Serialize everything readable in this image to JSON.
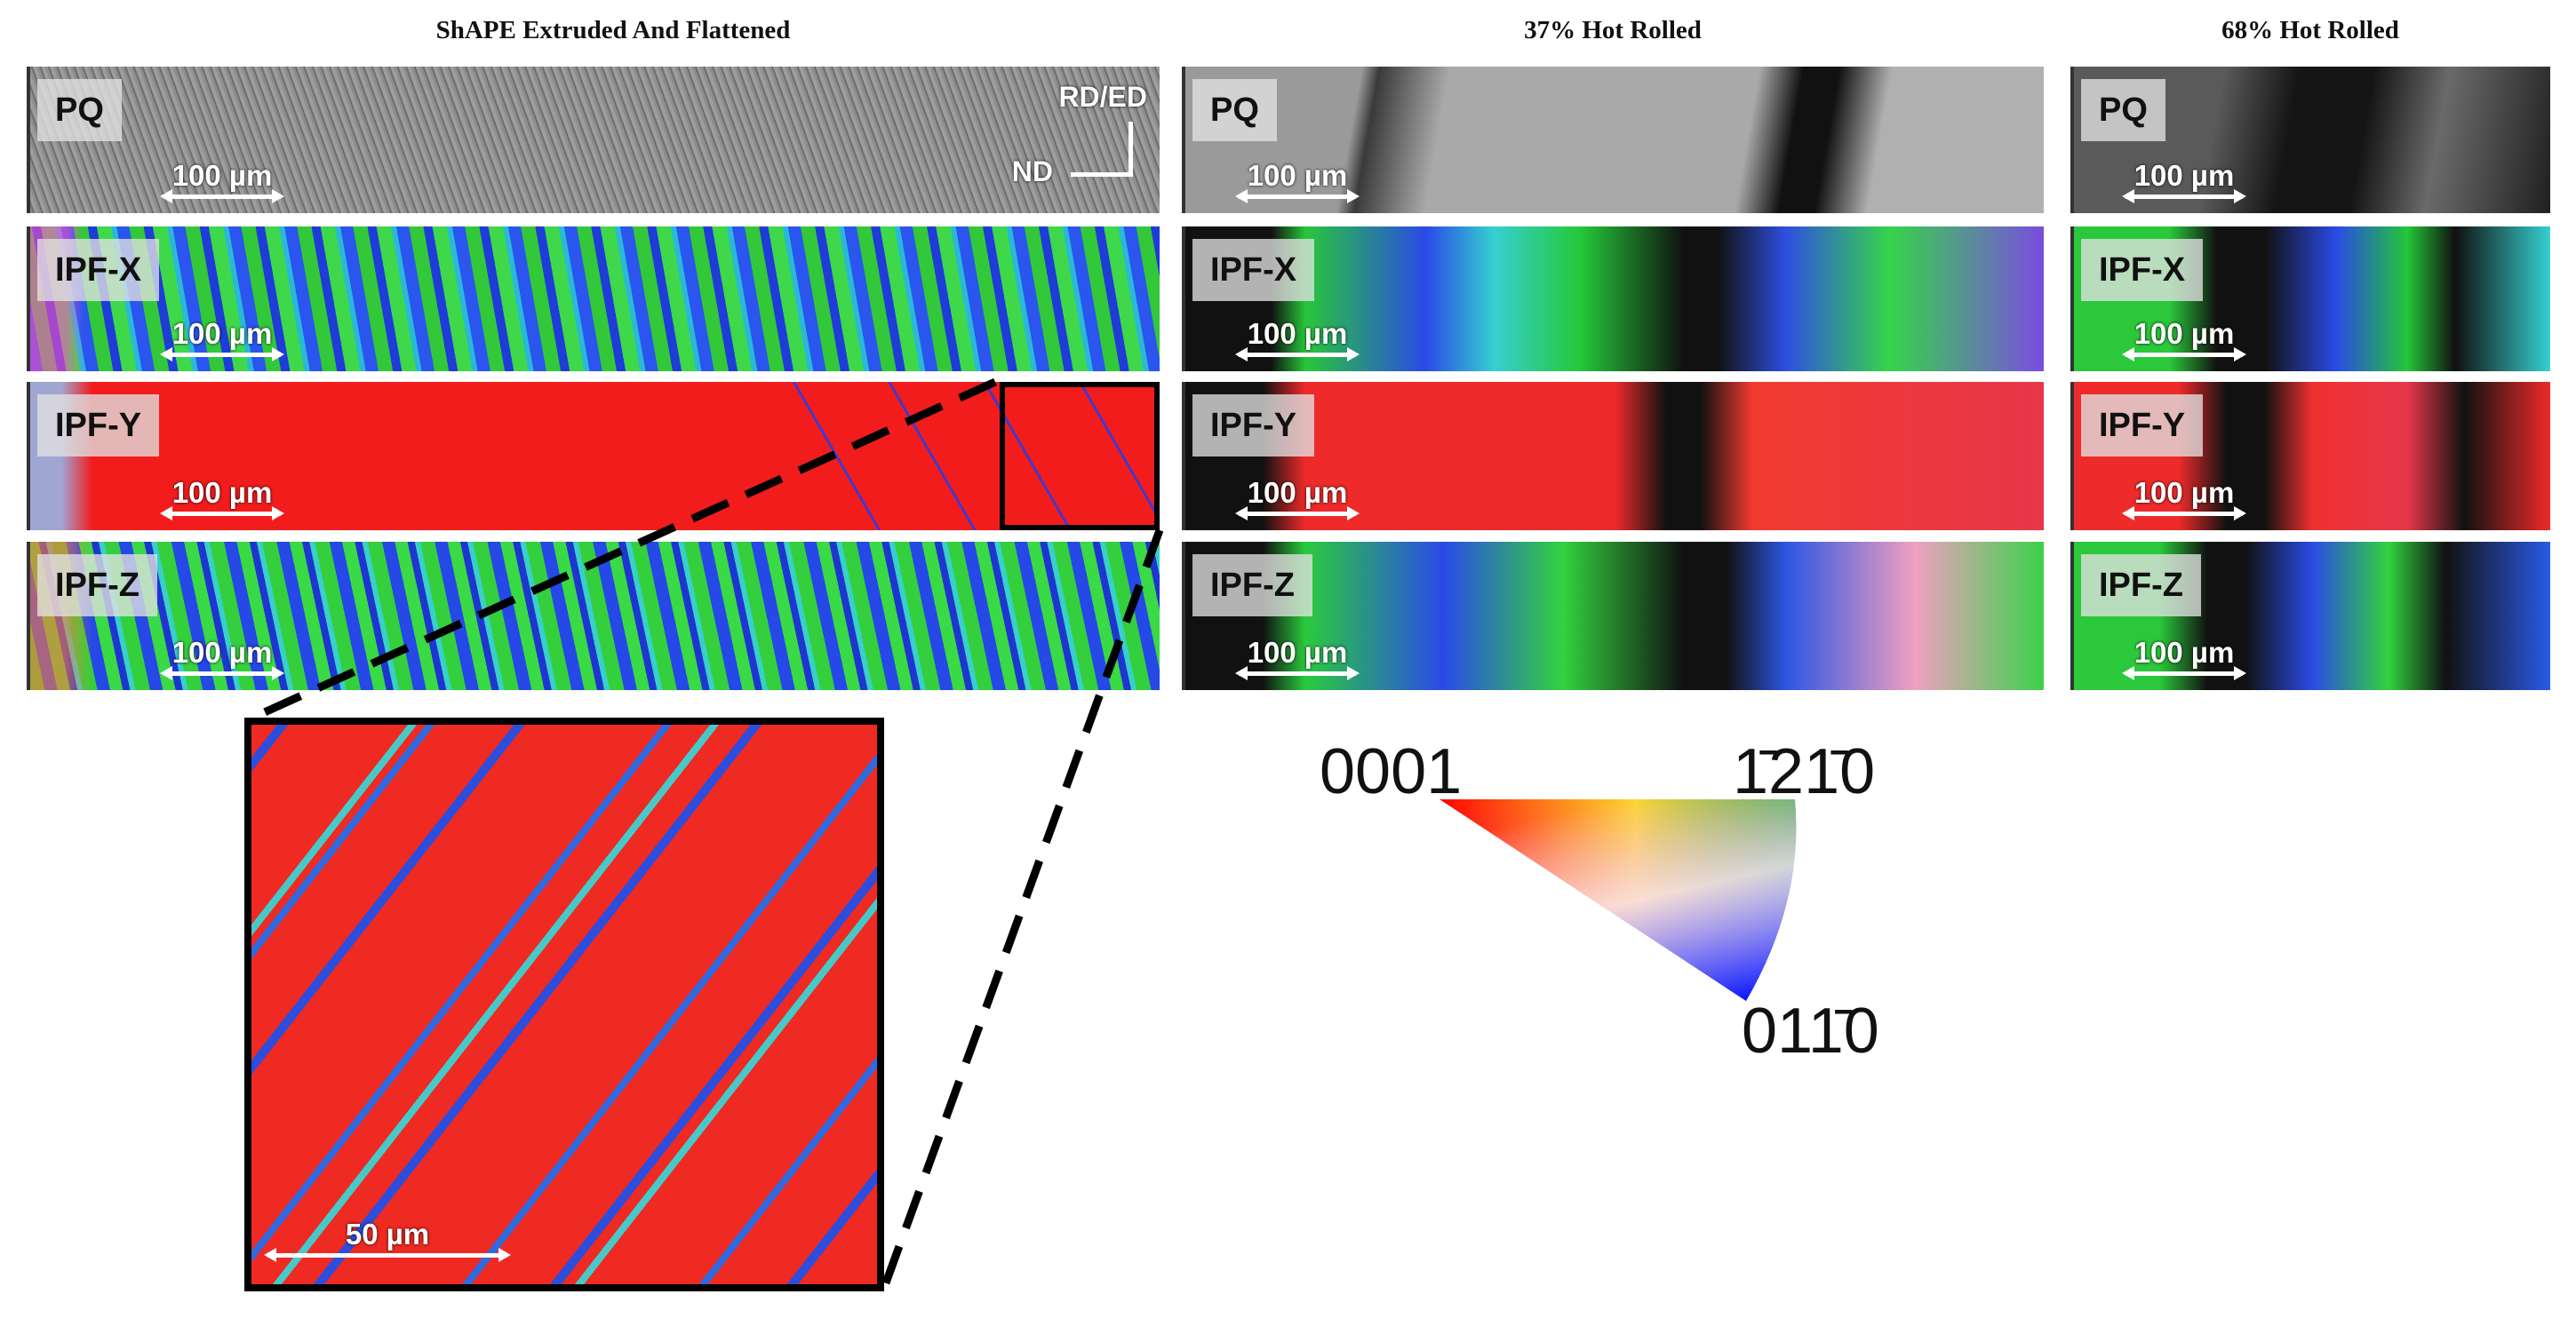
{
  "columns": [
    {
      "title": "ShAPE Extruded And Flattened"
    },
    {
      "title": "37% Hot Rolled"
    },
    {
      "title": "68% Hot Rolled"
    }
  ],
  "map_labels": [
    "PQ",
    "IPF-X",
    "IPF-Y",
    "IPF-Z"
  ],
  "scale_bar": "100 µm",
  "inset_scale_bar": "50 µm",
  "axes": {
    "vertical": "RD/ED",
    "horizontal": "ND"
  },
  "legend": {
    "corner_basal": "0001",
    "corner_prism_a": "1̄21̄0",
    "corner_prism_m": "011̄0"
  },
  "colors": {
    "red": "#ff2020",
    "green": "#22e022",
    "blue": "#2040ff",
    "cyan": "#20e0e0",
    "grey": "#9a9a9a"
  }
}
